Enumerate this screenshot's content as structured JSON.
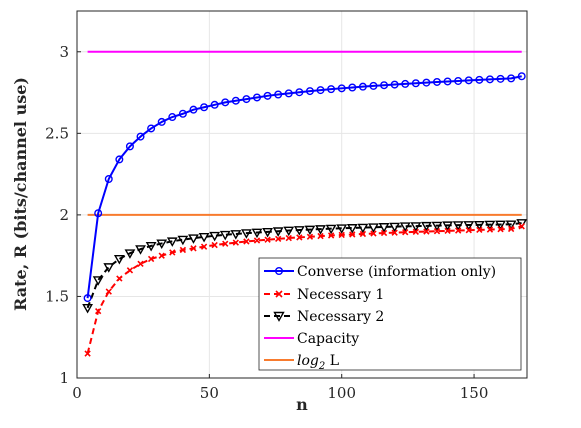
{
  "chart_data": {
    "type": "line",
    "xlabel": "n",
    "ylabel": "Rate, R (bits/channel use)",
    "xlim": [
      0,
      170
    ],
    "ylim": [
      1,
      3.25
    ],
    "xticks": [
      0,
      50,
      100,
      150
    ],
    "yticks": [
      1,
      1.5,
      2,
      2.5,
      3
    ],
    "xtick_labels": [
      "0",
      "50",
      "100",
      "150"
    ],
    "ytick_labels": [
      "1",
      "1.5",
      "2",
      "2.5",
      "3"
    ],
    "grid": true,
    "legend_position": "bottom-right",
    "legend": {
      "converse": "Converse (information only)",
      "nec1": "Necessary 1",
      "nec2": "Necessary 2",
      "capacity": "Capacity",
      "log2_prefix": "log",
      "log2_sub": "2",
      "log2_suffix": " L"
    },
    "series": [
      {
        "name": "Converse (information only)",
        "color": "#0000ff",
        "marker": "circle",
        "linestyle": "solid",
        "x": [
          4,
          8,
          12,
          16,
          20,
          24,
          28,
          32,
          36,
          40,
          44,
          48,
          52,
          56,
          60,
          64,
          68,
          72,
          76,
          80,
          84,
          88,
          92,
          96,
          100,
          104,
          108,
          112,
          116,
          120,
          124,
          128,
          132,
          136,
          140,
          144,
          148,
          152,
          156,
          160,
          164,
          168
        ],
        "y": [
          1.49,
          2.01,
          2.22,
          2.34,
          2.42,
          2.48,
          2.53,
          2.57,
          2.6,
          2.62,
          2.645,
          2.66,
          2.675,
          2.69,
          2.7,
          2.71,
          2.72,
          2.73,
          2.738,
          2.745,
          2.752,
          2.759,
          2.765,
          2.771,
          2.776,
          2.781,
          2.786,
          2.791,
          2.795,
          2.799,
          2.803,
          2.807,
          2.811,
          2.815,
          2.818,
          2.821,
          2.825,
          2.828,
          2.831,
          2.834,
          2.837,
          2.85
        ]
      },
      {
        "name": "Necessary 1",
        "color": "#ff0000",
        "marker": "x",
        "linestyle": "dashed",
        "x": [
          4,
          8,
          12,
          16,
          20,
          24,
          28,
          32,
          36,
          40,
          44,
          48,
          52,
          56,
          60,
          64,
          68,
          72,
          76,
          80,
          84,
          88,
          92,
          96,
          100,
          104,
          108,
          112,
          116,
          120,
          124,
          128,
          132,
          136,
          140,
          144,
          148,
          152,
          156,
          160,
          164,
          168
        ],
        "y": [
          1.15,
          1.41,
          1.53,
          1.61,
          1.66,
          1.7,
          1.73,
          1.75,
          1.77,
          1.785,
          1.795,
          1.805,
          1.815,
          1.823,
          1.83,
          1.837,
          1.843,
          1.848,
          1.853,
          1.858,
          1.862,
          1.866,
          1.87,
          1.874,
          1.877,
          1.88,
          1.883,
          1.886,
          1.889,
          1.891,
          1.894,
          1.896,
          1.898,
          1.9,
          1.902,
          1.904,
          1.906,
          1.908,
          1.91,
          1.912,
          1.914,
          1.93
        ]
      },
      {
        "name": "Necessary 2",
        "color": "#000000",
        "marker": "triangle-down",
        "linestyle": "dashed",
        "x": [
          4,
          8,
          12,
          16,
          20,
          24,
          28,
          32,
          36,
          40,
          44,
          48,
          52,
          56,
          60,
          64,
          68,
          72,
          76,
          80,
          84,
          88,
          92,
          96,
          100,
          104,
          108,
          112,
          116,
          120,
          124,
          128,
          132,
          136,
          140,
          144,
          148,
          152,
          156,
          160,
          164,
          168
        ],
        "y": [
          1.43,
          1.6,
          1.68,
          1.73,
          1.765,
          1.79,
          1.81,
          1.825,
          1.838,
          1.848,
          1.857,
          1.865,
          1.872,
          1.878,
          1.883,
          1.888,
          1.892,
          1.896,
          1.9,
          1.904,
          1.907,
          1.91,
          1.913,
          1.916,
          1.918,
          1.92,
          1.922,
          1.924,
          1.926,
          1.928,
          1.93,
          1.931,
          1.933,
          1.934,
          1.936,
          1.937,
          1.938,
          1.939,
          1.94,
          1.941,
          1.942,
          1.95
        ]
      },
      {
        "name": "Capacity",
        "color": "#ff00ff",
        "marker": "none",
        "linestyle": "solid",
        "x": [
          4,
          168
        ],
        "y": [
          3.0,
          3.0
        ]
      },
      {
        "name": "log2 L",
        "color": "#f87b2e",
        "marker": "none",
        "linestyle": "solid",
        "x": [
          4,
          168
        ],
        "y": [
          2.0,
          2.0
        ]
      }
    ]
  }
}
